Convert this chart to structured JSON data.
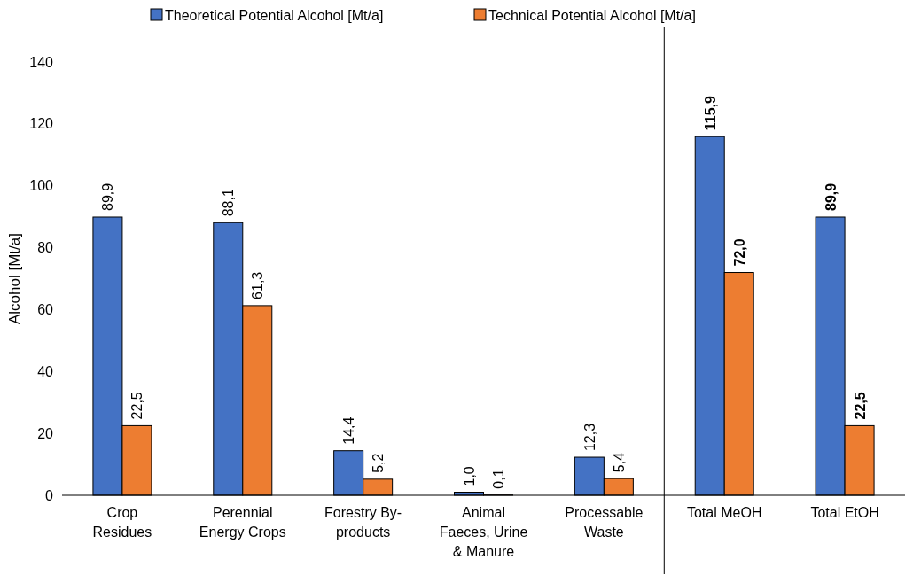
{
  "chart_data": {
    "type": "bar",
    "ylabel": "Alcohol [Mt/a]",
    "categories": [
      "Crop\nResidues",
      "Perennial\nEnergy Crops",
      "Forestry By-\nproducts",
      "Animal\nFaeces, Urine\n& Manure",
      "Processable\nWaste",
      "Total MeOH",
      "Total EtOH"
    ],
    "series": [
      {
        "name": "Theoretical Potential Alcohol [Mt/a]",
        "color": "#4472c4",
        "values": [
          89.9,
          88.1,
          14.4,
          1.0,
          12.3,
          115.9,
          89.9
        ],
        "value_labels": [
          "89,9",
          "88,1",
          "14,4",
          "1,0",
          "12,3",
          "115,9",
          "89,9"
        ]
      },
      {
        "name": "Technical Potential Alcohol [Mt/a]",
        "color": "#ed7d31",
        "values": [
          22.5,
          61.3,
          5.2,
          0.1,
          5.4,
          72.0,
          22.5
        ],
        "value_labels": [
          "22,5",
          "61,3",
          "5,2",
          "0,1",
          "5,4",
          "72,0",
          "22,5"
        ]
      }
    ],
    "ylim": [
      0,
      140
    ],
    "yticks": [
      0,
      20,
      40,
      60,
      80,
      100,
      120,
      140
    ],
    "grid": false,
    "legend": "top"
  }
}
